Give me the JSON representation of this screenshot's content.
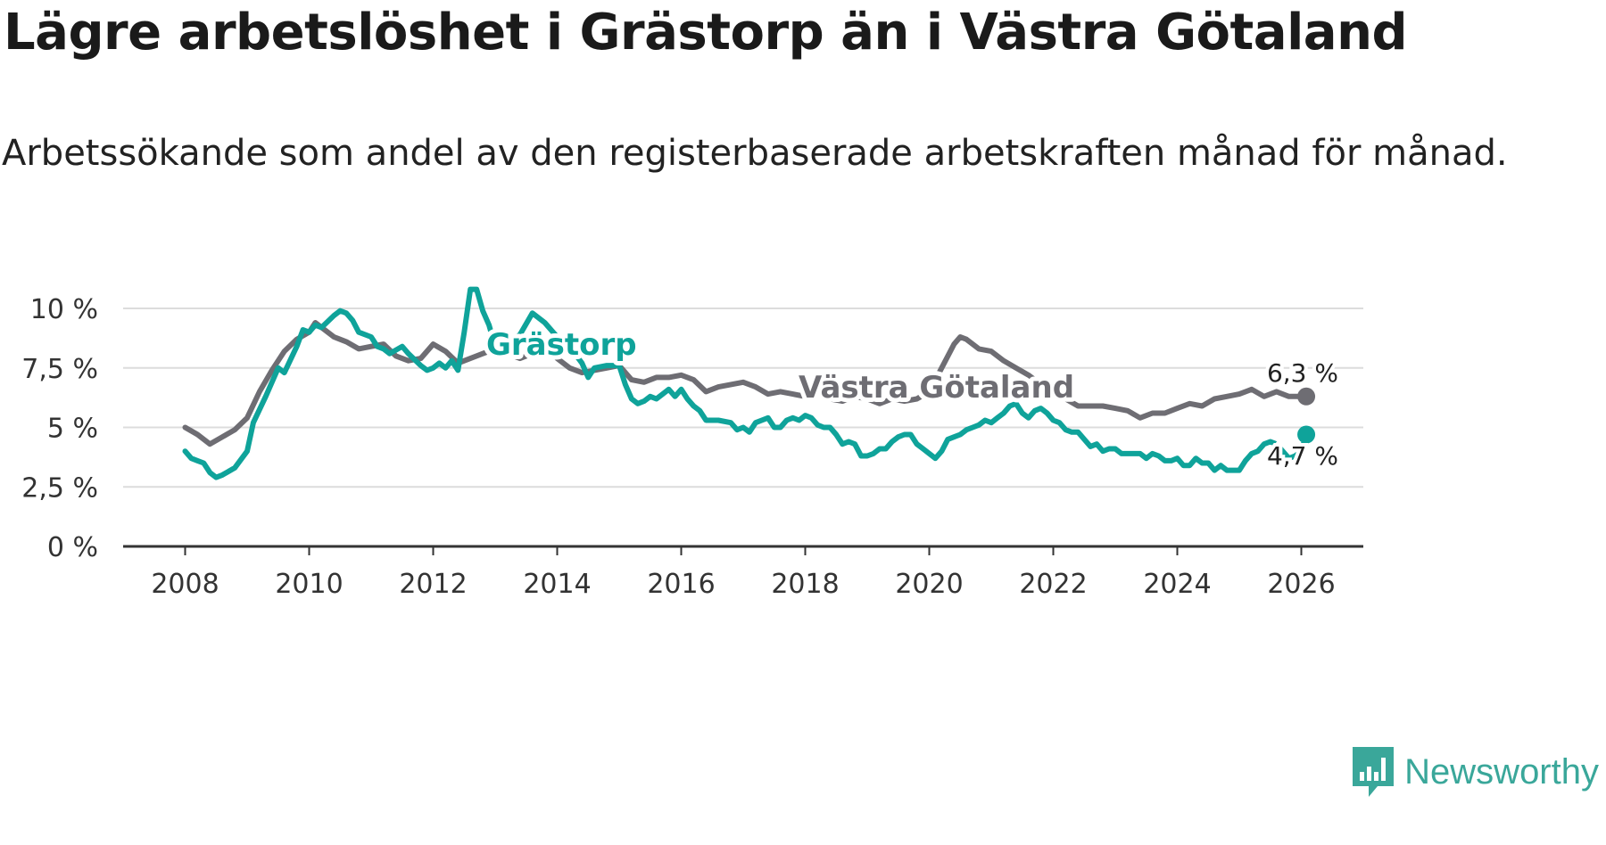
{
  "header": {
    "title": "Lägre arbetslöshet i Grästorp än i Västra Götaland",
    "subtitle": "Arbetssökande som andel av den registerbaserade arbetskraften månad för månad."
  },
  "brand": {
    "name": "Newsworthy"
  },
  "colors": {
    "grastorp": "#0fa39a",
    "vg": "#6e6d73",
    "grid": "#dcdcdc",
    "axis": "#333333"
  },
  "chart_data": {
    "type": "line",
    "title": "Lägre arbetslöshet i Grästorp än i Västra Götaland",
    "xlabel": "",
    "ylabel": "",
    "xlim": [
      2007.0,
      2027.0
    ],
    "ylim": [
      0,
      10
    ],
    "x_ticks": [
      2008,
      2010,
      2012,
      2014,
      2016,
      2018,
      2020,
      2022,
      2024,
      2026
    ],
    "x_tick_labels": [
      "2008",
      "2010",
      "2012",
      "2014",
      "2016",
      "2018",
      "2020",
      "2022",
      "2024",
      "2026"
    ],
    "y_ticks": [
      0,
      2.5,
      5,
      7.5,
      10
    ],
    "y_tick_labels": [
      "0 %",
      "2,5 %",
      "5 %",
      "7,5 %",
      "10 %"
    ],
    "grid": true,
    "series": [
      {
        "name": "Västra Götaland",
        "label_text": "Västra Götaland",
        "end_label": "6,3 %",
        "end_value": 6.3,
        "end_x": 2026.08,
        "points": [
          [
            2008.0,
            5.0
          ],
          [
            2008.2,
            4.7
          ],
          [
            2008.4,
            4.3
          ],
          [
            2008.6,
            4.6
          ],
          [
            2008.8,
            4.9
          ],
          [
            2009.0,
            5.4
          ],
          [
            2009.2,
            6.5
          ],
          [
            2009.4,
            7.4
          ],
          [
            2009.6,
            8.2
          ],
          [
            2009.8,
            8.7
          ],
          [
            2010.0,
            9.0
          ],
          [
            2010.1,
            9.4
          ],
          [
            2010.2,
            9.2
          ],
          [
            2010.4,
            8.8
          ],
          [
            2010.6,
            8.6
          ],
          [
            2010.8,
            8.3
          ],
          [
            2011.0,
            8.4
          ],
          [
            2011.2,
            8.5
          ],
          [
            2011.4,
            8.0
          ],
          [
            2011.6,
            7.8
          ],
          [
            2011.8,
            7.9
          ],
          [
            2012.0,
            8.5
          ],
          [
            2012.2,
            8.2
          ],
          [
            2012.4,
            7.7
          ],
          [
            2012.6,
            7.9
          ],
          [
            2012.8,
            8.1
          ],
          [
            2013.0,
            8.3
          ],
          [
            2013.2,
            8.1
          ],
          [
            2013.4,
            7.9
          ],
          [
            2013.6,
            8.1
          ],
          [
            2013.8,
            8.4
          ],
          [
            2014.0,
            7.9
          ],
          [
            2014.2,
            7.5
          ],
          [
            2014.4,
            7.3
          ],
          [
            2014.6,
            7.4
          ],
          [
            2014.8,
            7.5
          ],
          [
            2015.0,
            7.6
          ],
          [
            2015.2,
            7.0
          ],
          [
            2015.4,
            6.9
          ],
          [
            2015.6,
            7.1
          ],
          [
            2015.8,
            7.1
          ],
          [
            2016.0,
            7.2
          ],
          [
            2016.2,
            7.0
          ],
          [
            2016.4,
            6.5
          ],
          [
            2016.6,
            6.7
          ],
          [
            2016.8,
            6.8
          ],
          [
            2017.0,
            6.9
          ],
          [
            2017.2,
            6.7
          ],
          [
            2017.4,
            6.4
          ],
          [
            2017.6,
            6.5
          ],
          [
            2017.8,
            6.4
          ],
          [
            2018.0,
            6.3
          ],
          [
            2018.2,
            6.5
          ],
          [
            2018.4,
            6.2
          ],
          [
            2018.6,
            6.1
          ],
          [
            2018.8,
            6.3
          ],
          [
            2019.0,
            6.2
          ],
          [
            2019.2,
            6.0
          ],
          [
            2019.4,
            6.2
          ],
          [
            2019.6,
            6.1
          ],
          [
            2019.8,
            6.2
          ],
          [
            2020.0,
            6.5
          ],
          [
            2020.2,
            7.5
          ],
          [
            2020.4,
            8.5
          ],
          [
            2020.5,
            8.8
          ],
          [
            2020.6,
            8.7
          ],
          [
            2020.8,
            8.3
          ],
          [
            2021.0,
            8.2
          ],
          [
            2021.2,
            7.8
          ],
          [
            2021.4,
            7.5
          ],
          [
            2021.6,
            7.2
          ],
          [
            2021.8,
            6.8
          ],
          [
            2022.0,
            6.5
          ],
          [
            2022.2,
            6.2
          ],
          [
            2022.4,
            5.9
          ],
          [
            2022.6,
            5.9
          ],
          [
            2022.8,
            5.9
          ],
          [
            2023.0,
            5.8
          ],
          [
            2023.2,
            5.7
          ],
          [
            2023.4,
            5.4
          ],
          [
            2023.6,
            5.6
          ],
          [
            2023.8,
            5.6
          ],
          [
            2024.0,
            5.8
          ],
          [
            2024.2,
            6.0
          ],
          [
            2024.4,
            5.9
          ],
          [
            2024.6,
            6.2
          ],
          [
            2024.8,
            6.3
          ],
          [
            2025.0,
            6.4
          ],
          [
            2025.2,
            6.6
          ],
          [
            2025.4,
            6.3
          ],
          [
            2025.6,
            6.5
          ],
          [
            2025.8,
            6.3
          ],
          [
            2026.0,
            6.3
          ]
        ]
      },
      {
        "name": "Grästorp",
        "label_text": "Grästorp",
        "end_label": "4,7 %",
        "end_value": 4.7,
        "end_x": 2026.08,
        "points": [
          [
            2008.0,
            4.0
          ],
          [
            2008.1,
            3.7
          ],
          [
            2008.2,
            3.6
          ],
          [
            2008.3,
            3.5
          ],
          [
            2008.4,
            3.1
          ],
          [
            2008.5,
            2.9
          ],
          [
            2008.6,
            3.0
          ],
          [
            2008.8,
            3.3
          ],
          [
            2009.0,
            4.0
          ],
          [
            2009.1,
            5.2
          ],
          [
            2009.3,
            6.3
          ],
          [
            2009.5,
            7.5
          ],
          [
            2009.6,
            7.3
          ],
          [
            2009.8,
            8.4
          ],
          [
            2009.9,
            9.1
          ],
          [
            2010.0,
            9.0
          ],
          [
            2010.1,
            9.3
          ],
          [
            2010.2,
            9.2
          ],
          [
            2010.4,
            9.7
          ],
          [
            2010.5,
            9.9
          ],
          [
            2010.6,
            9.8
          ],
          [
            2010.7,
            9.5
          ],
          [
            2010.8,
            9.0
          ],
          [
            2011.0,
            8.8
          ],
          [
            2011.1,
            8.4
          ],
          [
            2011.2,
            8.3
          ],
          [
            2011.3,
            8.1
          ],
          [
            2011.5,
            8.4
          ],
          [
            2011.6,
            8.1
          ],
          [
            2011.8,
            7.6
          ],
          [
            2011.9,
            7.4
          ],
          [
            2012.0,
            7.5
          ],
          [
            2012.1,
            7.7
          ],
          [
            2012.2,
            7.5
          ],
          [
            2012.3,
            7.8
          ],
          [
            2012.4,
            7.4
          ],
          [
            2012.5,
            9.0
          ],
          [
            2012.6,
            10.8
          ],
          [
            2012.7,
            10.8
          ],
          [
            2012.8,
            9.9
          ],
          [
            2012.9,
            9.3
          ],
          [
            2013.0,
            8.4
          ],
          [
            2013.1,
            8.6
          ],
          [
            2013.2,
            8.4
          ],
          [
            2013.3,
            8.7
          ],
          [
            2013.4,
            8.9
          ],
          [
            2013.6,
            9.8
          ],
          [
            2013.8,
            9.4
          ],
          [
            2014.0,
            8.8
          ],
          [
            2014.2,
            8.4
          ],
          [
            2014.4,
            7.7
          ],
          [
            2014.5,
            7.1
          ],
          [
            2014.6,
            7.5
          ],
          [
            2014.8,
            7.6
          ],
          [
            2015.0,
            7.6
          ],
          [
            2015.1,
            6.8
          ],
          [
            2015.2,
            6.2
          ],
          [
            2015.3,
            6.0
          ],
          [
            2015.4,
            6.1
          ],
          [
            2015.5,
            6.3
          ],
          [
            2015.6,
            6.2
          ],
          [
            2015.7,
            6.4
          ],
          [
            2015.8,
            6.6
          ],
          [
            2015.9,
            6.3
          ],
          [
            2016.0,
            6.6
          ],
          [
            2016.1,
            6.2
          ],
          [
            2016.2,
            5.9
          ],
          [
            2016.3,
            5.7
          ],
          [
            2016.4,
            5.3
          ],
          [
            2016.6,
            5.3
          ],
          [
            2016.8,
            5.2
          ],
          [
            2016.9,
            4.9
          ],
          [
            2017.0,
            5.0
          ],
          [
            2017.1,
            4.8
          ],
          [
            2017.2,
            5.2
          ],
          [
            2017.3,
            5.3
          ],
          [
            2017.4,
            5.4
          ],
          [
            2017.5,
            5.0
          ],
          [
            2017.6,
            5.0
          ],
          [
            2017.7,
            5.3
          ],
          [
            2017.8,
            5.4
          ],
          [
            2017.9,
            5.3
          ],
          [
            2018.0,
            5.5
          ],
          [
            2018.1,
            5.4
          ],
          [
            2018.2,
            5.1
          ],
          [
            2018.3,
            5.0
          ],
          [
            2018.4,
            5.0
          ],
          [
            2018.5,
            4.7
          ],
          [
            2018.6,
            4.3
          ],
          [
            2018.7,
            4.4
          ],
          [
            2018.8,
            4.3
          ],
          [
            2018.9,
            3.8
          ],
          [
            2019.0,
            3.8
          ],
          [
            2019.1,
            3.9
          ],
          [
            2019.2,
            4.1
          ],
          [
            2019.3,
            4.1
          ],
          [
            2019.4,
            4.4
          ],
          [
            2019.5,
            4.6
          ],
          [
            2019.6,
            4.7
          ],
          [
            2019.7,
            4.7
          ],
          [
            2019.8,
            4.3
          ],
          [
            2019.9,
            4.1
          ],
          [
            2020.0,
            3.9
          ],
          [
            2020.1,
            3.7
          ],
          [
            2020.2,
            4.0
          ],
          [
            2020.3,
            4.5
          ],
          [
            2020.4,
            4.6
          ],
          [
            2020.5,
            4.7
          ],
          [
            2020.6,
            4.9
          ],
          [
            2020.7,
            5.0
          ],
          [
            2020.8,
            5.1
          ],
          [
            2020.9,
            5.3
          ],
          [
            2021.0,
            5.2
          ],
          [
            2021.1,
            5.4
          ],
          [
            2021.2,
            5.6
          ],
          [
            2021.3,
            5.9
          ],
          [
            2021.4,
            6.0
          ],
          [
            2021.5,
            5.6
          ],
          [
            2021.6,
            5.4
          ],
          [
            2021.7,
            5.7
          ],
          [
            2021.8,
            5.8
          ],
          [
            2021.9,
            5.6
          ],
          [
            2022.0,
            5.3
          ],
          [
            2022.1,
            5.2
          ],
          [
            2022.2,
            4.9
          ],
          [
            2022.3,
            4.8
          ],
          [
            2022.4,
            4.8
          ],
          [
            2022.5,
            4.5
          ],
          [
            2022.6,
            4.2
          ],
          [
            2022.7,
            4.3
          ],
          [
            2022.8,
            4.0
          ],
          [
            2022.9,
            4.1
          ],
          [
            2023.0,
            4.1
          ],
          [
            2023.1,
            3.9
          ],
          [
            2023.2,
            3.9
          ],
          [
            2023.3,
            3.9
          ],
          [
            2023.4,
            3.9
          ],
          [
            2023.5,
            3.7
          ],
          [
            2023.6,
            3.9
          ],
          [
            2023.7,
            3.8
          ],
          [
            2023.8,
            3.6
          ],
          [
            2023.9,
            3.6
          ],
          [
            2024.0,
            3.7
          ],
          [
            2024.1,
            3.4
          ],
          [
            2024.2,
            3.4
          ],
          [
            2024.3,
            3.7
          ],
          [
            2024.4,
            3.5
          ],
          [
            2024.5,
            3.5
          ],
          [
            2024.6,
            3.2
          ],
          [
            2024.7,
            3.4
          ],
          [
            2024.8,
            3.2
          ],
          [
            2024.9,
            3.2
          ],
          [
            2025.0,
            3.2
          ],
          [
            2025.1,
            3.6
          ],
          [
            2025.2,
            3.9
          ],
          [
            2025.3,
            4.0
          ],
          [
            2025.4,
            4.3
          ],
          [
            2025.5,
            4.4
          ],
          [
            2025.6,
            4.3
          ],
          [
            2025.7,
            4.0
          ],
          [
            2025.8,
            3.7
          ],
          [
            2025.9,
            3.8
          ],
          [
            2026.0,
            4.0
          ],
          [
            2026.08,
            4.7
          ]
        ]
      }
    ]
  }
}
